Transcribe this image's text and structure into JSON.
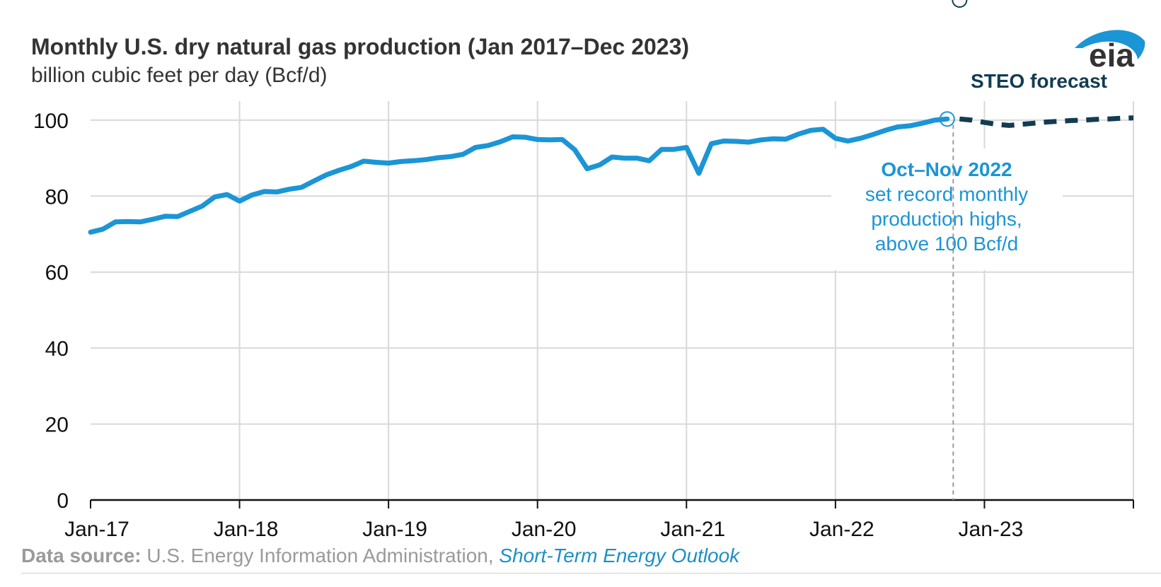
{
  "logo_text": "eia",
  "source": {
    "label": "Data source:",
    "text": " U.S. Energy Information Administration, ",
    "publication": "Short-Term Energy Outlook"
  },
  "chart_data": {
    "type": "line",
    "title": "Monthly U.S. dry natural gas production (Jan 2017–Dec 2023)",
    "subtitle": "billion cubic feet per day (Bcf/d)",
    "xlabel": "",
    "ylabel": "",
    "ylim": [
      0,
      105
    ],
    "yticks": [
      0,
      20,
      40,
      60,
      80,
      100
    ],
    "xticks": [
      {
        "label": "Jan-17",
        "date": "2017-01"
      },
      {
        "label": "Jan-18",
        "date": "2018-01"
      },
      {
        "label": "Jan-19",
        "date": "2019-01"
      },
      {
        "label": "Jan-20",
        "date": "2020-01"
      },
      {
        "label": "Jan-21",
        "date": "2021-01"
      },
      {
        "label": "Jan-22",
        "date": "2022-01"
      },
      {
        "label": "Jan-23",
        "date": "2023-01"
      }
    ],
    "xlim": [
      "2017-01",
      "2024-01"
    ],
    "grid": true,
    "forecast_label": "STEO forecast",
    "forecast_start": "2022-11",
    "series": [
      {
        "kind": "historical",
        "color": "#1b95d6",
        "start": "2017-01",
        "values": [
          70.5,
          71.3,
          73.2,
          73.3,
          73.2,
          73.9,
          74.7,
          74.6,
          76.0,
          77.4,
          79.8,
          80.4,
          78.7,
          80.3,
          81.2,
          81.1,
          81.8,
          82.3,
          84.0,
          85.6,
          86.8,
          87.8,
          89.2,
          88.9,
          88.7,
          89.1,
          89.3,
          89.6,
          90.1,
          90.4,
          91.0,
          92.8,
          93.3,
          94.3,
          95.6,
          95.5,
          94.9,
          94.8,
          94.9,
          92.2,
          87.2,
          88.2,
          90.3,
          90.0,
          90.0,
          89.3,
          92.3,
          92.3,
          92.8,
          86.0,
          93.8,
          94.5,
          94.4,
          94.2,
          94.8,
          95.1,
          95.0,
          96.3,
          97.3,
          97.6,
          95.2,
          94.5,
          95.2,
          96.2,
          97.3,
          98.2,
          98.5,
          99.2,
          100.0,
          100.3
        ]
      },
      {
        "kind": "forecast",
        "color": "#123c52",
        "start": "2022-11",
        "values": [
          100.3,
          100.0,
          99.4,
          98.9,
          98.6,
          98.9,
          99.2,
          99.5,
          99.7,
          99.9,
          100.0,
          100.2,
          100.3,
          100.5,
          100.6
        ]
      }
    ],
    "annotation": {
      "heading": "Oct–Nov 2022",
      "lines": [
        "set record monthly",
        "production highs,",
        "above 100 Bcf/d"
      ],
      "color": "#1b95d6"
    }
  }
}
